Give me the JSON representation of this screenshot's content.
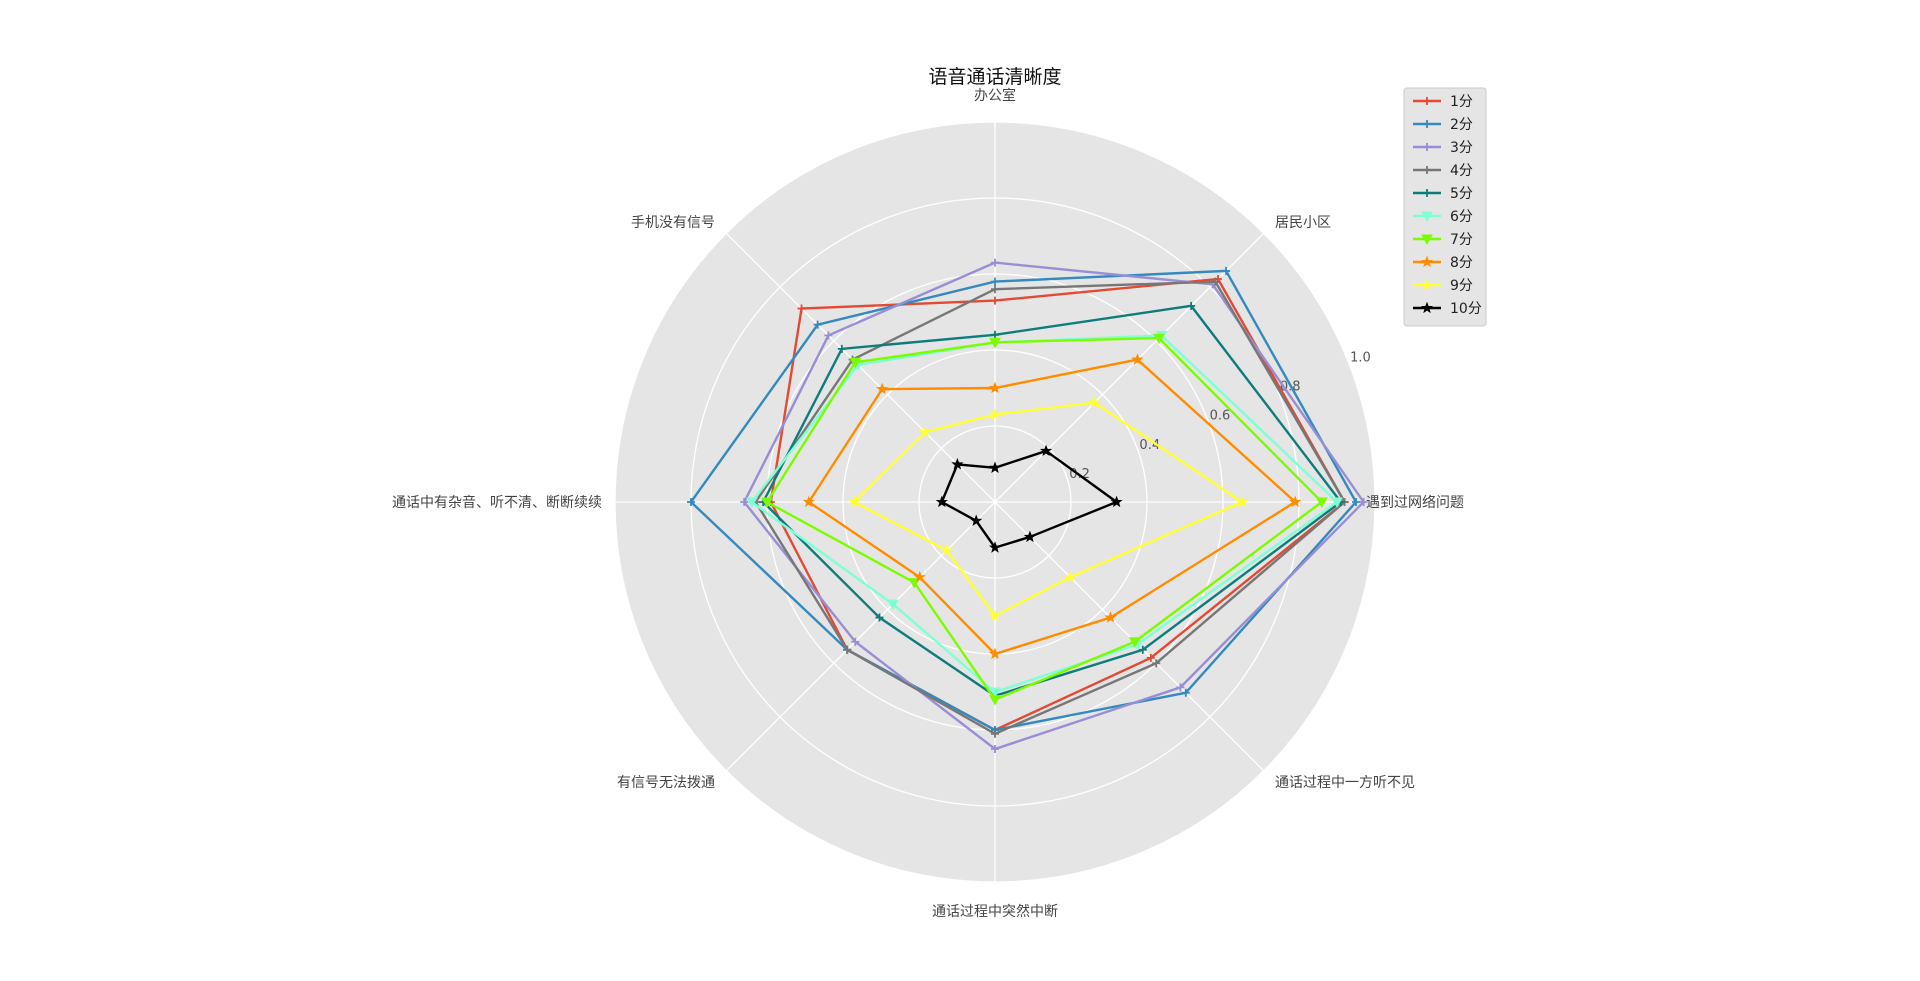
{
  "chart_data": {
    "type": "radar",
    "title": "语音通话清晰度",
    "categories": [
      "遇到过网络问题",
      "居民小区",
      "办公室",
      "手机没有信号",
      "通话中有杂音、听不清、断断续续",
      "有信号无法拨通",
      "通话过程中突然中断",
      "通话过程中一方听不见"
    ],
    "rlim": [
      0,
      1.0
    ],
    "rticks": [
      0.2,
      0.4,
      0.6,
      0.8,
      1.0
    ],
    "rtick_labels": [
      "0.2",
      "0.4",
      "0.6",
      "0.8",
      "1.0"
    ],
    "grid": true,
    "legend_position": "upper-right",
    "series": [
      {
        "name": "1分",
        "color": "#E24A33",
        "marker": "plus",
        "values": [
          0.92,
          0.83,
          0.53,
          0.72,
          0.59,
          0.55,
          0.6,
          0.58
        ]
      },
      {
        "name": "2分",
        "color": "#348ABD",
        "marker": "plus",
        "values": [
          0.95,
          0.86,
          0.58,
          0.66,
          0.8,
          0.55,
          0.6,
          0.71
        ]
      },
      {
        "name": "3分",
        "color": "#988ED5",
        "marker": "plus",
        "values": [
          0.97,
          0.81,
          0.63,
          0.62,
          0.66,
          0.52,
          0.65,
          0.69
        ]
      },
      {
        "name": "4分",
        "color": "#777777",
        "marker": "plus",
        "values": [
          0.92,
          0.82,
          0.56,
          0.53,
          0.63,
          0.55,
          0.61,
          0.6
        ]
      },
      {
        "name": "5分",
        "color": "#0E7C7B",
        "marker": "plus",
        "values": [
          0.91,
          0.73,
          0.44,
          0.57,
          0.61,
          0.43,
          0.51,
          0.55
        ]
      },
      {
        "name": "6分",
        "color": "#7FFFD4",
        "marker": "triangle-down",
        "values": [
          0.9,
          0.62,
          0.42,
          0.51,
          0.64,
          0.38,
          0.5,
          0.53
        ]
      },
      {
        "name": "7分",
        "color": "#7CFC00",
        "marker": "triangle-down",
        "values": [
          0.86,
          0.61,
          0.42,
          0.52,
          0.6,
          0.3,
          0.52,
          0.52
        ]
      },
      {
        "name": "8分",
        "color": "#FF8C00",
        "marker": "star",
        "values": [
          0.79,
          0.53,
          0.3,
          0.42,
          0.49,
          0.28,
          0.4,
          0.43
        ]
      },
      {
        "name": "9分",
        "color": "#FFFF33",
        "marker": "star",
        "values": [
          0.65,
          0.37,
          0.23,
          0.26,
          0.37,
          0.18,
          0.3,
          0.28
        ]
      },
      {
        "name": "10分",
        "color": "#000000",
        "marker": "star",
        "values": [
          0.32,
          0.19,
          0.09,
          0.14,
          0.14,
          0.07,
          0.12,
          0.13
        ]
      }
    ]
  }
}
